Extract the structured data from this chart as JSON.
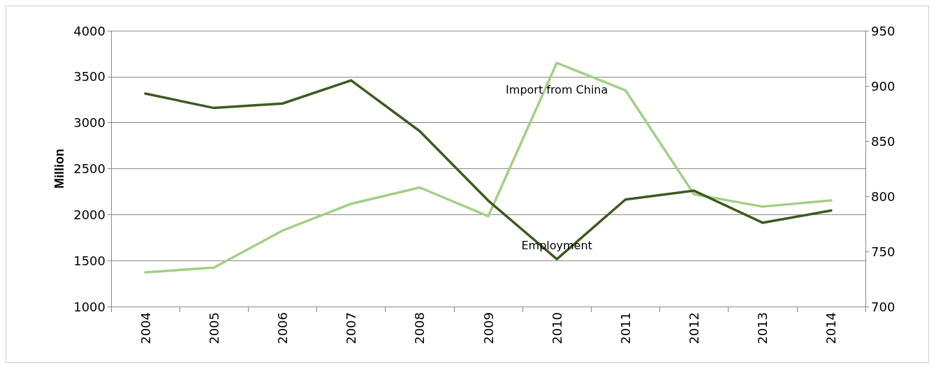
{
  "chart_data": {
    "type": "line",
    "ylabel": "Million",
    "categories": [
      "2004",
      "2005",
      "2006",
      "2007",
      "2008",
      "2009",
      "2010",
      "2011",
      "2012",
      "2013",
      "2014"
    ],
    "series": [
      {
        "name": "Import from China",
        "color": "#a3cf86",
        "values": [
          1372,
          1424,
          1826,
          2117,
          2295,
          1982,
          3650,
          3352,
          2221,
          2087,
          2154
        ]
      },
      {
        "name": "Employment",
        "color": "#3d5a1f",
        "axis": "y2",
        "values": [
          893,
          880,
          884,
          905,
          859,
          796,
          743,
          797,
          805,
          776,
          787
        ]
      }
    ],
    "ylim": [
      1000,
      4000
    ],
    "yticks": [
      1000,
      1500,
      2000,
      2500,
      3000,
      3500,
      4000
    ],
    "y2lim": [
      700,
      950
    ],
    "y2ticks": [
      700,
      750,
      800,
      850,
      900,
      950
    ],
    "grid": "y",
    "legend": false,
    "marker": "none",
    "line_style": "solid"
  }
}
